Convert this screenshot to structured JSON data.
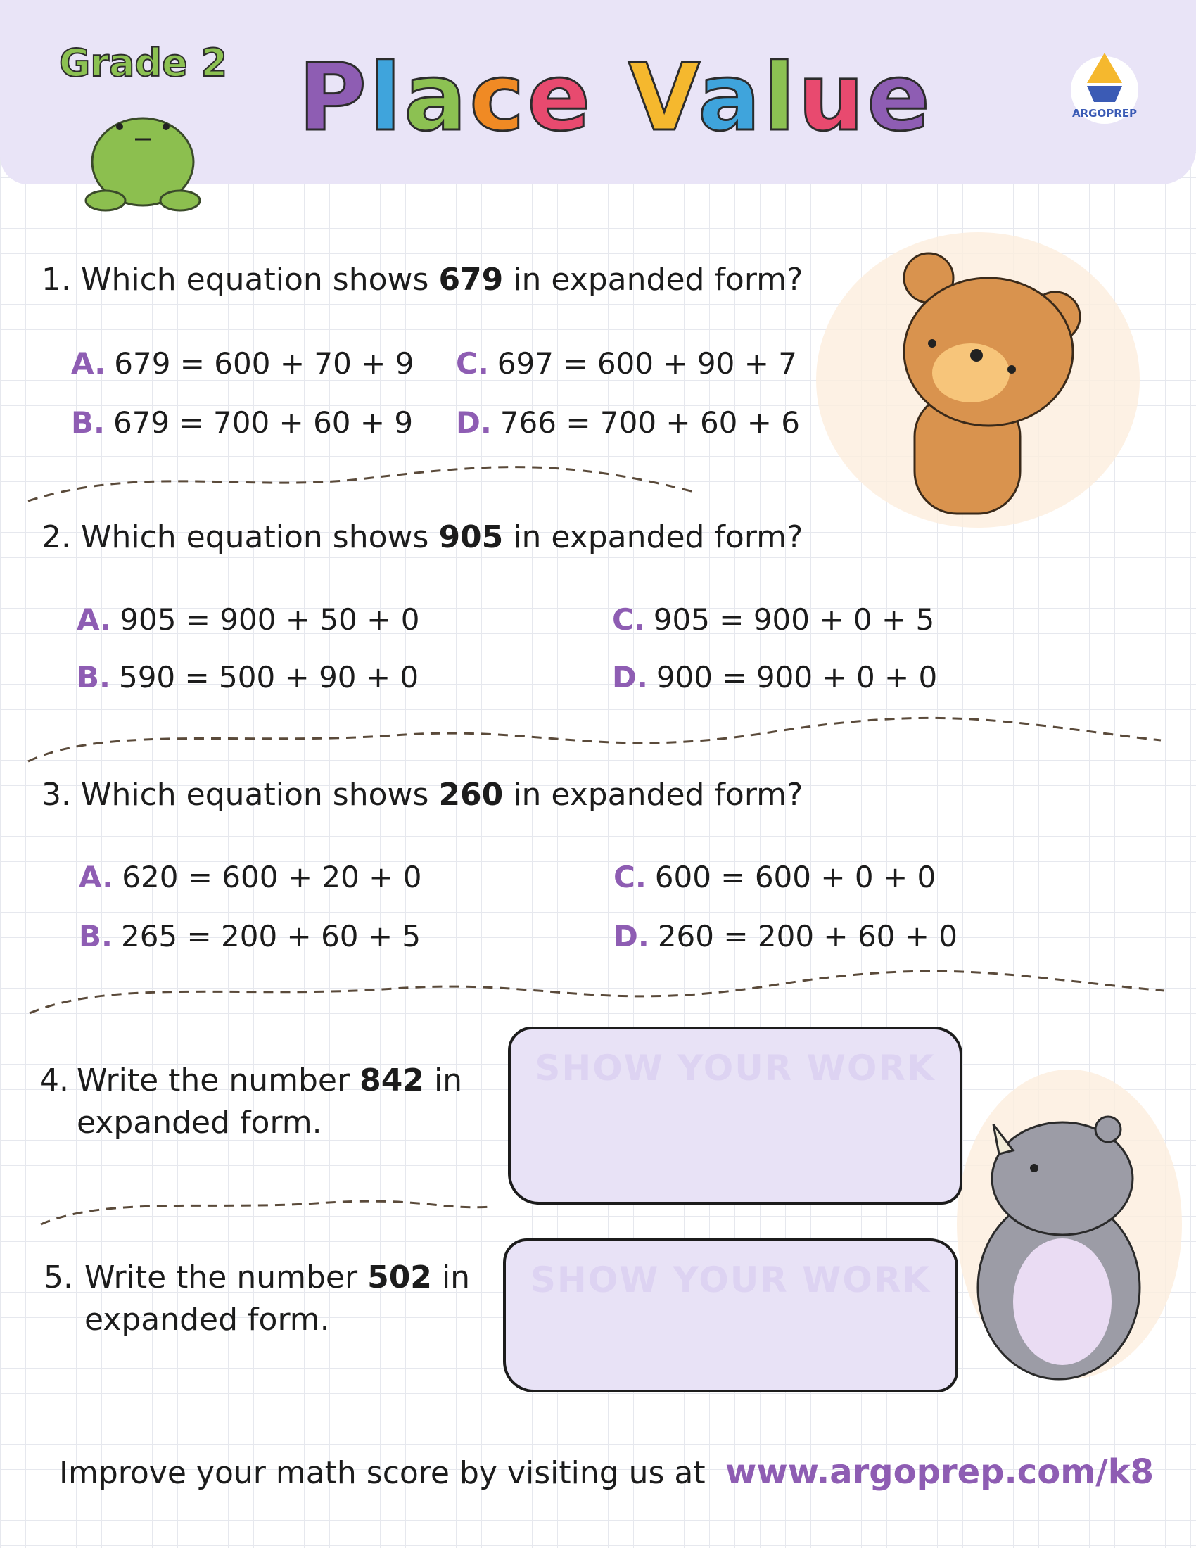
{
  "header": {
    "grade": "Grade 2",
    "title": "Place Value",
    "logo": "ARGOPREP"
  },
  "questions": [
    {
      "number": "1.",
      "prompt": "Which equation shows",
      "target": "679",
      "prompt_end": "in expanded form?",
      "options": [
        {
          "letter": "A.",
          "equation": "679 = 600 + 70 + 9"
        },
        {
          "letter": "B.",
          "equation": "679 = 700 + 60 + 9"
        },
        {
          "letter": "C.",
          "equation": "697 = 600 + 90 + 7"
        },
        {
          "letter": "D.",
          "equation": "766 = 700 + 60 + 6"
        }
      ]
    },
    {
      "number": "2.",
      "prompt": "Which equation shows",
      "target": "905",
      "prompt_end": "in expanded form?",
      "options": [
        {
          "letter": "A.",
          "equation": "905 = 900 + 50 + 0"
        },
        {
          "letter": "B.",
          "equation": "590 = 500 + 90 + 0"
        },
        {
          "letter": "C.",
          "equation": "905 = 900 + 0 + 5"
        },
        {
          "letter": "D.",
          "equation": "900 = 900 + 0 + 0"
        }
      ]
    },
    {
      "number": "3.",
      "prompt": "Which equation shows",
      "target": "260",
      "prompt_end": "in expanded form?",
      "options": [
        {
          "letter": "A.",
          "equation": "620 = 600 + 20 + 0"
        },
        {
          "letter": "B.",
          "equation": "265 = 200 + 60 + 5"
        },
        {
          "letter": "C.",
          "equation": "600 = 600 + 0 + 0"
        },
        {
          "letter": "D.",
          "equation": "260 = 200 + 60 + 0"
        }
      ]
    }
  ],
  "written": [
    {
      "number": "4.",
      "prompt": "Write the number",
      "target": "842",
      "prompt_end": "in",
      "prompt_line2": "expanded form.",
      "work_label": "SHOW YOUR WORK"
    },
    {
      "number": "5.",
      "prompt": "Write the number",
      "target": "502",
      "prompt_end": "in",
      "prompt_line2": "expanded form.",
      "work_label": "SHOW YOUR WORK"
    }
  ],
  "footer": {
    "text": "Improve your math score by visiting us at",
    "url": "www.argoprep.com/k8"
  }
}
